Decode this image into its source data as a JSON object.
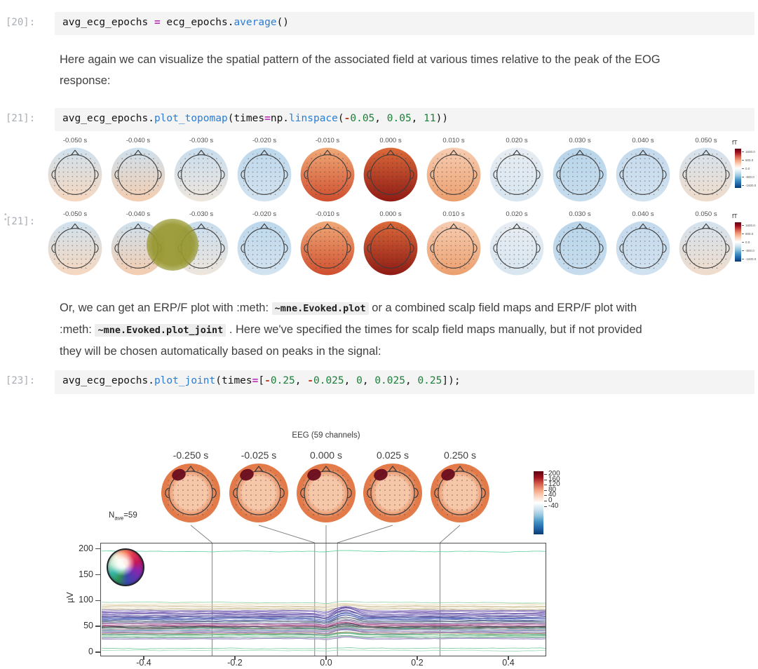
{
  "page": {
    "bg": "#ffffff"
  },
  "cells": {
    "cell20": {
      "prompt": "[20]:",
      "tokens": [
        {
          "t": "avg_ecg_epochs ",
          "s": "d"
        },
        {
          "t": "=",
          "s": "op"
        },
        {
          "t": " ecg_epochs.",
          "s": "d"
        },
        {
          "t": "average",
          "s": "fn"
        },
        {
          "t": "()",
          "s": "d"
        }
      ]
    },
    "cell21": {
      "prompt": "[21]:",
      "tokens": [
        {
          "t": "avg_ecg_epochs.",
          "s": "d"
        },
        {
          "t": "plot_topomap",
          "s": "fn"
        },
        {
          "t": "(times",
          "s": "d"
        },
        {
          "t": "=",
          "s": "op"
        },
        {
          "t": "np.",
          "s": "d"
        },
        {
          "t": "linspace",
          "s": "fn"
        },
        {
          "t": "(",
          "s": "d"
        },
        {
          "t": "-",
          "s": "minus"
        },
        {
          "t": "0.05",
          "s": "num"
        },
        {
          "t": ", ",
          "s": "d"
        },
        {
          "t": "0.05",
          "s": "num"
        },
        {
          "t": ", ",
          "s": "d"
        },
        {
          "t": "11",
          "s": "num"
        },
        {
          "t": "))",
          "s": "d"
        }
      ]
    },
    "cell23": {
      "prompt": "[23]:",
      "tokens": [
        {
          "t": "avg_ecg_epochs.",
          "s": "d"
        },
        {
          "t": "plot_joint",
          "s": "fn"
        },
        {
          "t": "(times",
          "s": "d"
        },
        {
          "t": "=",
          "s": "op"
        },
        {
          "t": "[",
          "s": "d"
        },
        {
          "t": "-",
          "s": "minus"
        },
        {
          "t": "0.25",
          "s": "num"
        },
        {
          "t": ", ",
          "s": "d"
        },
        {
          "t": "-",
          "s": "minus"
        },
        {
          "t": "0.025",
          "s": "num"
        },
        {
          "t": ", ",
          "s": "d"
        },
        {
          "t": "0",
          "s": "num"
        },
        {
          "t": ", ",
          "s": "d"
        },
        {
          "t": "0.025",
          "s": "num"
        },
        {
          "t": ", ",
          "s": "d"
        },
        {
          "t": "0.25",
          "s": "num"
        },
        {
          "t": "]);",
          "s": "d"
        }
      ]
    },
    "out21_prompt": "[21]:"
  },
  "markdown": {
    "para1_lines": [
      [
        {
          "t": "Here again we can visualize the spatial pattern of the associated field at various times relative to the peak of the EOG"
        }
      ],
      [
        {
          "t": "response:"
        }
      ]
    ],
    "para2_lines": [
      [
        {
          "t": "Or, we can get an ERP/F plot with :meth: "
        },
        {
          "t": "~mne.Evoked.plot",
          "chip": true
        },
        {
          "t": " or a combined scalp field maps and ERP/F plot with"
        }
      ],
      [
        {
          "t": ":meth: "
        },
        {
          "t": "~mne.Evoked.plot_joint",
          "chip": true
        },
        {
          "t": " . Here we've specified the times for scalp field maps manually, but if not provided"
        }
      ],
      [
        {
          "t": "they will be chosen automatically based on peaks in the signal:"
        }
      ]
    ]
  },
  "topomap_output": {
    "times": [
      "-0.050 s",
      "-0.040 s",
      "-0.030 s",
      "-0.020 s",
      "-0.010 s",
      "0.000 s",
      "0.010 s",
      "0.020 s",
      "0.030 s",
      "0.040 s",
      "0.050 s"
    ],
    "head_colors": [
      [
        "#cfe2ef",
        "#f6d7bf"
      ],
      [
        "#cde1ef",
        "#f4cdb0"
      ],
      [
        "#c8ddee",
        "#eee6dd"
      ],
      [
        "#bdd8ec",
        "#d3e3f0"
      ],
      [
        "#f0a978",
        "#cf4e2e"
      ],
      [
        "#dd6a3a",
        "#8e1a14"
      ],
      [
        "#f6cdb2",
        "#ec9f6e"
      ],
      [
        "#e7edf3",
        "#d8e6f0"
      ],
      [
        "#b9d5ea",
        "#c7ddee"
      ],
      [
        "#c4daed",
        "#d2e2f0"
      ],
      [
        "#d4e3f0",
        "#f0dccb"
      ]
    ],
    "colorbar": {
      "unit": "fT",
      "ticks": [
        "1600.0",
        "800.0",
        "0.0",
        "-800.0",
        "-1600.0"
      ]
    }
  },
  "marker": {
    "color": "#96962d"
  },
  "joint_figure": {
    "title": "EEG (59 channels)",
    "times": [
      "-0.250 s",
      "-0.025 s",
      "0.000 s",
      "0.025 s",
      "0.250 s"
    ],
    "time_values": [
      -0.25,
      -0.025,
      0,
      0.025,
      0.25
    ],
    "colorbar": {
      "ticks": [
        "200",
        "160",
        "120",
        "80",
        "40",
        "0"
      ],
      "bottom_tick": "-40"
    },
    "nave": {
      "main": "N",
      "sub": "ave",
      "rest": "=59"
    },
    "ylabel": "µV",
    "yticks": [
      "200",
      "150",
      "100",
      "50",
      "0"
    ],
    "ytick_values": [
      200,
      150,
      100,
      50,
      0
    ],
    "xticks": [
      "-0.4",
      "-0.2",
      "0.0",
      "0.2",
      "0.4"
    ],
    "xtick_values": [
      -0.4,
      -0.2,
      0,
      0.2,
      0.4
    ],
    "xlim": [
      -0.5,
      0.5
    ],
    "head_colors": [
      "#f6c7a8",
      "#e27a4a"
    ],
    "blob_color": "#6a0d1d",
    "channels": [
      [
        196,
        "#5ed1a0",
        2
      ],
      [
        97,
        "#8fd3ab",
        3
      ],
      [
        93,
        "#e3d3a4",
        2
      ],
      [
        90,
        "#d9c79b",
        3
      ],
      [
        88,
        "#cdbf9d",
        3
      ],
      [
        86,
        "#e6d9b2",
        2
      ],
      [
        84,
        "#b7a97f",
        4
      ],
      [
        82,
        "#9b8fc4",
        7
      ],
      [
        80,
        "#8a79c0",
        9
      ],
      [
        79,
        "#7a63b4",
        10
      ],
      [
        77,
        "#6d55ab",
        11
      ],
      [
        76,
        "#937ec8",
        9
      ],
      [
        74,
        "#5e4a9e",
        12
      ],
      [
        73,
        "#8a6fc0",
        10
      ],
      [
        71,
        "#7a5fb0",
        11
      ],
      [
        70,
        "#4b3d8f",
        12
      ],
      [
        69,
        "#6655a8",
        10
      ],
      [
        68,
        "#55639e",
        9
      ],
      [
        66,
        "#3f51b5",
        10
      ],
      [
        65,
        "#5868c0",
        8
      ],
      [
        63,
        "#47579e",
        9
      ],
      [
        62,
        "#6a79b8",
        7
      ],
      [
        60,
        "#4a5568",
        8
      ],
      [
        59,
        "#66758a",
        6
      ],
      [
        57,
        "#7d8b9a",
        5
      ],
      [
        56,
        "#8a5a96",
        7
      ],
      [
        55,
        "#a868a8",
        6
      ],
      [
        54,
        "#c27fa8",
        5
      ],
      [
        52,
        "#b05c88",
        6
      ],
      [
        51,
        "#923d68",
        7
      ],
      [
        50,
        "#3d4454",
        6
      ],
      [
        49,
        "#525a6e",
        5
      ],
      [
        47,
        "#2f3542",
        6
      ],
      [
        46,
        "#46a08f",
        5
      ],
      [
        45,
        "#5cb3a5",
        4
      ],
      [
        44,
        "#7ec4b8",
        3
      ],
      [
        43,
        "#86a0b8",
        4
      ],
      [
        42,
        "#6f8fae",
        5
      ],
      [
        41,
        "#a0b8cc",
        3
      ],
      [
        40,
        "#b89ccc",
        5
      ],
      [
        39,
        "#9a7fb8",
        6
      ],
      [
        38,
        "#7a68a0",
        7
      ],
      [
        36,
        "#8898b0",
        4
      ],
      [
        35,
        "#65bb8a",
        4
      ],
      [
        34,
        "#4f9e74",
        4
      ],
      [
        33,
        "#7fc79a",
        3
      ],
      [
        31,
        "#a5d8b5",
        2
      ],
      [
        30,
        "#90ccab",
        3
      ],
      [
        29,
        "#6aa888",
        3
      ],
      [
        28,
        "#b9a8d6",
        4
      ],
      [
        27,
        "#cbbce0",
        3
      ],
      [
        26,
        "#988ab8",
        4
      ],
      [
        45,
        "#d9a0b8",
        4
      ],
      [
        58,
        "#b8c4d9",
        4
      ],
      [
        72,
        "#a8b4d9",
        6
      ],
      [
        48,
        "#687a5a",
        4
      ],
      [
        37,
        "#c4a878",
        3
      ],
      [
        8,
        "#7acca0",
        1
      ],
      [
        4,
        "#99d8b4",
        1
      ]
    ]
  }
}
